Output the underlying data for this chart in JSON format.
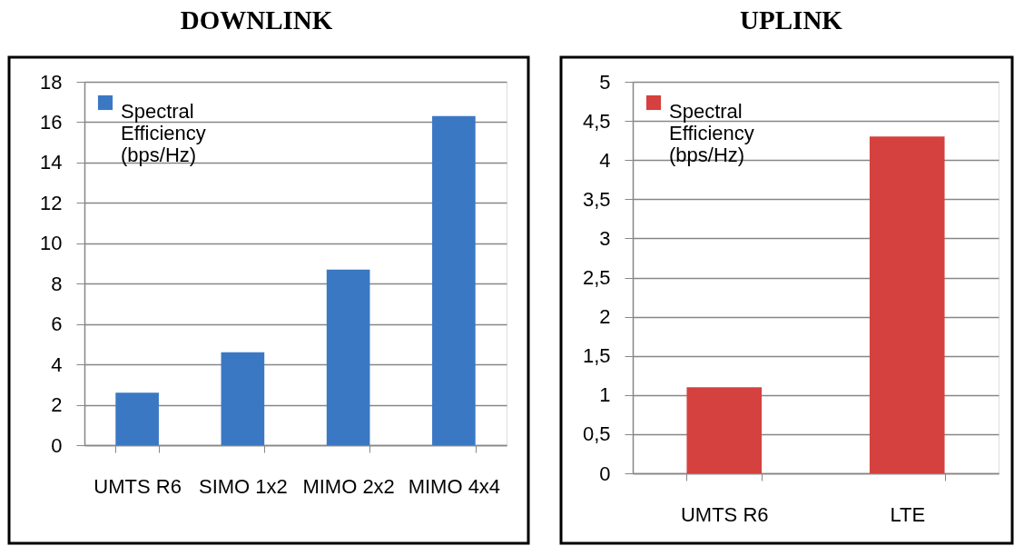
{
  "chart_data": [
    {
      "type": "bar",
      "title": "DOWNLINK",
      "categories": [
        "UMTS R6",
        "SIMO 1x2",
        "MIMO 2x2",
        "MIMO 4x4"
      ],
      "series": [
        {
          "name": "Spectral Efficiency (bps/Hz)",
          "color": "#3b78c4",
          "values": [
            2.6,
            4.6,
            8.7,
            16.3
          ]
        }
      ],
      "ylim": [
        0,
        18
      ],
      "yticks": [
        0,
        2,
        4,
        6,
        8,
        10,
        12,
        14,
        16,
        18
      ],
      "grid": "y",
      "legend": "top left"
    },
    {
      "type": "bar",
      "title": "UPLINK",
      "categories": [
        "UMTS R6",
        "LTE"
      ],
      "series": [
        {
          "name": "Spectral Efficiency (bps/Hz)",
          "color": "#d5413e",
          "values": [
            1.1,
            4.3
          ]
        }
      ],
      "ylim": [
        0,
        5
      ],
      "yticks": [
        0,
        {
          "value": 0.5,
          "label": "0,5"
        },
        1,
        {
          "value": 1.5,
          "label": "1,5"
        },
        2,
        {
          "value": 2.5,
          "label": "2,5"
        },
        3,
        {
          "value": 3.5,
          "label": "3,5"
        },
        4,
        {
          "value": 4.5,
          "label": "4,5"
        },
        5
      ],
      "grid": "y",
      "legend": "top left"
    }
  ]
}
